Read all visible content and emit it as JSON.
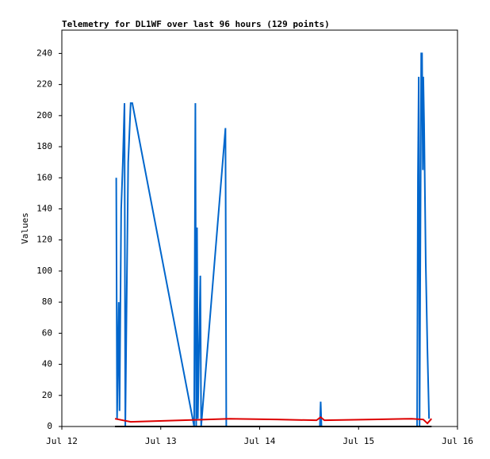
{
  "chart_data": {
    "type": "line",
    "title": "Telemetry for DL1WF over last 96 hours (129 points)",
    "ylabel": "Values",
    "xlim": [
      0,
      96
    ],
    "xticks": [
      {
        "value": 0,
        "label": "Jul 12"
      },
      {
        "value": 24,
        "label": "Jul 13"
      },
      {
        "value": 48,
        "label": "Jul 14"
      },
      {
        "value": 72,
        "label": "Jul 15"
      },
      {
        "value": 96,
        "label": "Jul 16"
      }
    ],
    "ylim": [
      0,
      255
    ],
    "yticks": [
      0,
      20,
      40,
      60,
      80,
      100,
      120,
      140,
      160,
      180,
      200,
      220,
      240
    ],
    "series": [
      {
        "color": "#0066cc",
        "x": [
          13.2,
          13.4,
          13.8,
          14.0,
          14.4,
          14.8,
          15.2,
          15.4,
          15.7,
          16.1,
          16.7,
          17.1,
          32.1,
          32.4,
          32.6,
          32.8,
          33.0,
          33.6,
          33.8,
          39.7,
          39.9,
          62.6,
          62.8,
          63.0,
          86.2,
          86.4,
          86.6,
          86.8,
          87.2,
          87.4,
          87.6,
          87.7,
          87.9,
          88.3,
          88.7,
          89.1
        ],
        "values": [
          160,
          5,
          80,
          10,
          140,
          170,
          208,
          0,
          75,
          170,
          208,
          208,
          0,
          208,
          0,
          128,
          5,
          97,
          0,
          192,
          0,
          0,
          16,
          0,
          0,
          160,
          225,
          0,
          240,
          240,
          165,
          225,
          195,
          105,
          50,
          5
        ]
      },
      {
        "color": "#000000",
        "x": [
          12.9,
          89.7
        ],
        "values": [
          0,
          0
        ]
      },
      {
        "color": "#dd0000",
        "x": [
          12.9,
          16.7,
          29.2,
          40.7,
          52.2,
          61.8,
          62.8,
          63.7,
          75.3,
          84.9,
          87.7,
          88.7,
          89.7
        ],
        "values": [
          5,
          3,
          4,
          5,
          4.5,
          4,
          6,
          4,
          4.5,
          5,
          4.5,
          2,
          5
        ]
      }
    ]
  }
}
